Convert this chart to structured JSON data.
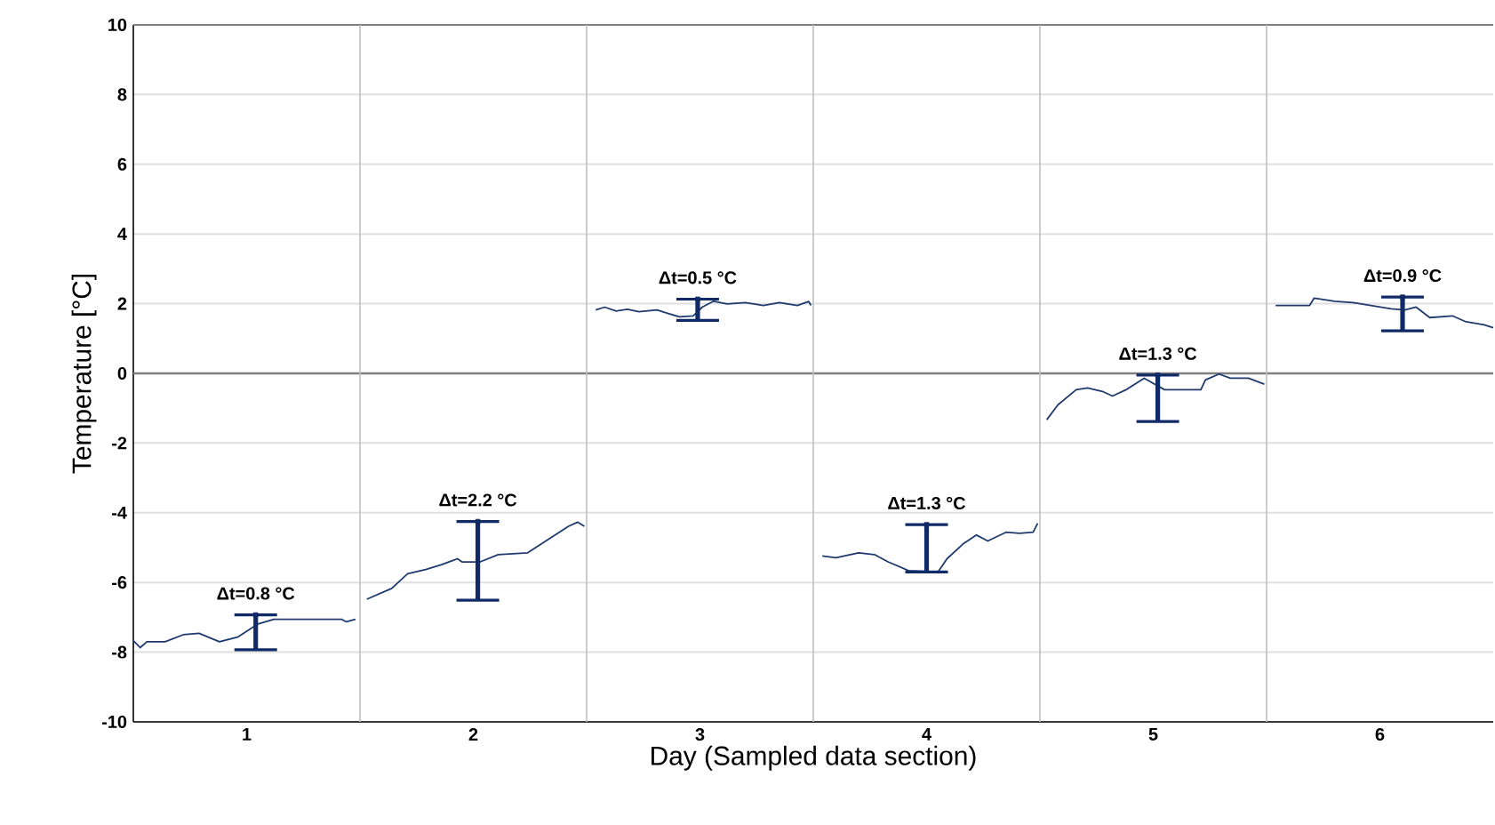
{
  "chart_data": {
    "type": "line",
    "xlabel": "Day (Sampled data section)",
    "ylabel": "Temperature [°C]",
    "xlim": [
      0,
      6
    ],
    "xticks": [
      {
        "value": 0.5,
        "label": "1"
      },
      {
        "value": 1.5,
        "label": "2"
      },
      {
        "value": 2.5,
        "label": "3"
      },
      {
        "value": 3.5,
        "label": "4"
      },
      {
        "value": 4.5,
        "label": "5"
      },
      {
        "value": 5.5,
        "label": "6"
      }
    ],
    "ylim": [
      -10,
      10
    ],
    "yticks": [
      -10,
      -8,
      -6,
      -4,
      -2,
      0,
      2,
      4,
      6,
      8,
      10
    ],
    "grid": "y",
    "marker": "none",
    "line_style": "solid",
    "series": [
      {
        "color": "#1f3a6e",
        "x": [
          0.0,
          0.03,
          0.06,
          0.14,
          0.22,
          0.29,
          0.38,
          0.46,
          0.55,
          0.62,
          0.92,
          0.94,
          0.98
        ],
        "values": [
          -7.67,
          -7.87,
          -7.7,
          -7.7,
          -7.5,
          -7.46,
          -7.7,
          -7.57,
          -7.19,
          -7.06,
          -7.06,
          -7.13,
          -7.06
        ]
      },
      {
        "color": "#1f3a6e",
        "x": [
          1.03,
          1.14,
          1.21,
          1.29,
          1.36,
          1.43,
          1.45,
          1.53,
          1.61,
          1.74,
          1.82,
          1.92,
          1.96,
          1.99
        ],
        "values": [
          -6.48,
          -6.17,
          -5.75,
          -5.63,
          -5.49,
          -5.32,
          -5.41,
          -5.41,
          -5.2,
          -5.15,
          -4.81,
          -4.39,
          -4.27,
          -4.39
        ]
      },
      {
        "color": "#1f3a6e",
        "x": [
          2.04,
          2.08,
          2.13,
          2.18,
          2.23,
          2.31,
          2.36,
          2.41,
          2.47,
          2.51,
          2.56,
          2.62,
          2.7,
          2.78,
          2.85,
          2.93,
          2.98,
          2.99
        ],
        "values": [
          1.82,
          1.9,
          1.79,
          1.84,
          1.77,
          1.82,
          1.72,
          1.62,
          1.65,
          1.9,
          2.07,
          1.99,
          2.03,
          1.95,
          2.03,
          1.95,
          2.06,
          1.95
        ]
      },
      {
        "color": "#1f3a6e",
        "x": [
          3.04,
          3.1,
          3.2,
          3.27,
          3.33,
          3.42,
          3.55,
          3.59,
          3.66,
          3.72,
          3.77,
          3.85,
          3.91,
          3.97,
          3.99
        ],
        "values": [
          -5.24,
          -5.29,
          -5.15,
          -5.2,
          -5.41,
          -5.66,
          -5.7,
          -5.32,
          -4.9,
          -4.64,
          -4.81,
          -4.56,
          -4.59,
          -4.56,
          -4.3
        ]
      },
      {
        "color": "#1f3a6e",
        "x": [
          4.03,
          4.08,
          4.16,
          4.21,
          4.28,
          4.32,
          4.38,
          4.46,
          4.55,
          4.62,
          4.71,
          4.73,
          4.79,
          4.84,
          4.92,
          4.99
        ],
        "values": [
          -1.33,
          -0.9,
          -0.47,
          -0.42,
          -0.53,
          -0.65,
          -0.47,
          -0.14,
          -0.47,
          -0.47,
          -0.47,
          -0.19,
          -0.02,
          -0.14,
          -0.14,
          -0.31
        ]
      },
      {
        "color": "#1f3a6e",
        "x": [
          5.04,
          5.19,
          5.21,
          5.3,
          5.38,
          5.46,
          5.55,
          5.61,
          5.66,
          5.72,
          5.82,
          5.88,
          5.96,
          6.0
        ],
        "values": [
          1.95,
          1.95,
          2.16,
          2.07,
          2.03,
          1.95,
          1.85,
          1.82,
          1.9,
          1.6,
          1.65,
          1.48,
          1.39,
          1.31
        ]
      },
      {
        "type": "scatter",
        "color": "#0f2a66",
        "marker": "square",
        "x": [
          0.54,
          1.52,
          2.49,
          3.5,
          4.52,
          5.6
        ],
        "values": [
          -6.93,
          -4.25,
          2.13,
          -4.34,
          -0.05,
          2.19
        ],
        "errors": [
          [
            -7.93,
            -6.93
          ],
          [
            -6.51,
            -4.25
          ],
          [
            1.52,
            2.13
          ],
          [
            -5.7,
            -4.34
          ],
          [
            -1.38,
            -0.05
          ],
          [
            1.22,
            2.19
          ]
        ]
      }
    ],
    "ref_lines": [
      {
        "axis": "y",
        "value": 0,
        "color": "#7f7f7f"
      },
      {
        "axis": "x",
        "value": 1,
        "color": "#bfbfbf"
      },
      {
        "axis": "x",
        "value": 2,
        "color": "#bfbfbf"
      },
      {
        "axis": "x",
        "value": 3,
        "color": "#bfbfbf"
      },
      {
        "axis": "x",
        "value": 4,
        "color": "#bfbfbf"
      },
      {
        "axis": "x",
        "value": 5,
        "color": "#bfbfbf"
      }
    ],
    "annotations": [
      "Δt=0.8 °C",
      "Δt=2.2 °C",
      "Δt=0.5 °C",
      "Δt=1.3 °C",
      "Δt=1.3 °C",
      "Δt=0.9 °C"
    ]
  }
}
